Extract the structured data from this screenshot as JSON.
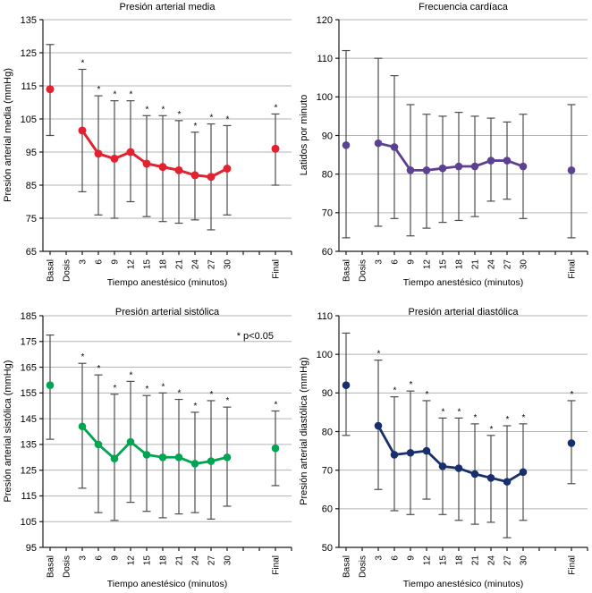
{
  "figure": {
    "background": "#ffffff",
    "style": {
      "grid_color": "#b3b3b3",
      "axis_color": "#1a1a1a",
      "error_bar_color": "#4d4d4d",
      "text_color": "#000000",
      "star_symbol": "*"
    }
  },
  "chart_data": [
    {
      "type": "line",
      "title": "Presión arterial media",
      "ylabel": "Presión arterial media (mmHg)",
      "xlabel": "Tiempo anestésico (minutos)",
      "ylim": [
        65,
        135
      ],
      "ytick_step": 10,
      "grid": true,
      "legend": "none",
      "color": "#e32230",
      "line_width": 3,
      "marker_radius": 4.5,
      "annotation": "",
      "categories": [
        "Basal",
        "Dosis",
        "3",
        "6",
        "9",
        "12",
        "15",
        "18",
        "21",
        "24",
        "27",
        "30",
        "",
        "",
        "Final"
      ],
      "line_from": "3",
      "line_to": "30",
      "points": [
        {
          "t": "Basal",
          "v": 114,
          "lo": 100,
          "hi": 127.5,
          "sig": false
        },
        {
          "t": "3",
          "v": 101.5,
          "lo": 83,
          "hi": 120,
          "sig": true
        },
        {
          "t": "6",
          "v": 94.5,
          "lo": 76,
          "hi": 112,
          "sig": true
        },
        {
          "t": "9",
          "v": 93,
          "lo": 75,
          "hi": 110.5,
          "sig": true
        },
        {
          "t": "12",
          "v": 95,
          "lo": 80,
          "hi": 110.5,
          "sig": true
        },
        {
          "t": "15",
          "v": 91.5,
          "lo": 75.5,
          "hi": 106,
          "sig": true
        },
        {
          "t": "18",
          "v": 90.5,
          "lo": 74,
          "hi": 106,
          "sig": true
        },
        {
          "t": "21",
          "v": 89.5,
          "lo": 73.5,
          "hi": 104.5,
          "sig": true
        },
        {
          "t": "24",
          "v": 88,
          "lo": 74.5,
          "hi": 101,
          "sig": true
        },
        {
          "t": "27",
          "v": 87.5,
          "lo": 71.5,
          "hi": 103.5,
          "sig": true
        },
        {
          "t": "30",
          "v": 90,
          "lo": 76,
          "hi": 103,
          "sig": true
        },
        {
          "t": "Final",
          "v": 96,
          "lo": 85,
          "hi": 106.5,
          "sig": true
        }
      ]
    },
    {
      "type": "line",
      "title": "Frecuencia cardíaca",
      "ylabel": "Latidos por minuto",
      "xlabel": "Tiempo anestésico (minutos)",
      "ylim": [
        60,
        120
      ],
      "ytick_step": 10,
      "grid": true,
      "legend": "none",
      "color": "#5c4092",
      "line_width": 2.8,
      "marker_radius": 4.3,
      "annotation": "",
      "categories": [
        "Basal",
        "Dosis",
        "3",
        "6",
        "9",
        "12",
        "15",
        "18",
        "21",
        "24",
        "27",
        "30",
        "",
        "",
        "Final"
      ],
      "line_from": "3",
      "line_to": "30",
      "points": [
        {
          "t": "Basal",
          "v": 87.5,
          "lo": 63.5,
          "hi": 112,
          "sig": false
        },
        {
          "t": "3",
          "v": 88,
          "lo": 66.5,
          "hi": 110,
          "sig": false
        },
        {
          "t": "6",
          "v": 87,
          "lo": 68.5,
          "hi": 105.5,
          "sig": false
        },
        {
          "t": "9",
          "v": 81,
          "lo": 64,
          "hi": 98,
          "sig": false
        },
        {
          "t": "12",
          "v": 81,
          "lo": 66,
          "hi": 95.5,
          "sig": false
        },
        {
          "t": "15",
          "v": 81.5,
          "lo": 67.5,
          "hi": 95,
          "sig": false
        },
        {
          "t": "18",
          "v": 82,
          "lo": 68,
          "hi": 96,
          "sig": false
        },
        {
          "t": "21",
          "v": 82,
          "lo": 69,
          "hi": 95,
          "sig": false
        },
        {
          "t": "24",
          "v": 83.5,
          "lo": 73,
          "hi": 94.5,
          "sig": false
        },
        {
          "t": "27",
          "v": 83.5,
          "lo": 73.5,
          "hi": 93.5,
          "sig": false
        },
        {
          "t": "30",
          "v": 82,
          "lo": 68.5,
          "hi": 95.5,
          "sig": false
        },
        {
          "t": "Final",
          "v": 81,
          "lo": 63.5,
          "hi": 98,
          "sig": false
        }
      ]
    },
    {
      "type": "line",
      "title": "Presión arterial sistólica",
      "ylabel": "Presión arterial sistólica (mmHg)",
      "xlabel": "Tiempo anestésico (minutos)",
      "ylim": [
        95,
        185
      ],
      "ytick_step": 10,
      "grid": true,
      "legend": "none",
      "color": "#00a551",
      "line_width": 2.8,
      "marker_radius": 4.3,
      "annotation": "* p<0.05",
      "categories": [
        "Basal",
        "Dosis",
        "3",
        "6",
        "9",
        "12",
        "15",
        "18",
        "21",
        "24",
        "27",
        "30",
        "",
        "",
        "Final"
      ],
      "line_from": "3",
      "line_to": "30",
      "points": [
        {
          "t": "Basal",
          "v": 158,
          "lo": 137,
          "hi": 177.5,
          "sig": false
        },
        {
          "t": "3",
          "v": 142,
          "lo": 118,
          "hi": 166.5,
          "sig": true
        },
        {
          "t": "6",
          "v": 135,
          "lo": 108.5,
          "hi": 162,
          "sig": true
        },
        {
          "t": "9",
          "v": 129.5,
          "lo": 105.5,
          "hi": 154.5,
          "sig": true
        },
        {
          "t": "12",
          "v": 136,
          "lo": 112.5,
          "hi": 159.5,
          "sig": true
        },
        {
          "t": "15",
          "v": 131,
          "lo": 109,
          "hi": 154,
          "sig": true
        },
        {
          "t": "18",
          "v": 130,
          "lo": 106.5,
          "hi": 155,
          "sig": true
        },
        {
          "t": "21",
          "v": 130,
          "lo": 108,
          "hi": 152.5,
          "sig": true
        },
        {
          "t": "24",
          "v": 127.5,
          "lo": 108.5,
          "hi": 147.5,
          "sig": true
        },
        {
          "t": "27",
          "v": 128.5,
          "lo": 106,
          "hi": 152,
          "sig": true
        },
        {
          "t": "30",
          "v": 130,
          "lo": 111,
          "hi": 149.5,
          "sig": true
        },
        {
          "t": "Final",
          "v": 133.5,
          "lo": 119,
          "hi": 148,
          "sig": true
        }
      ]
    },
    {
      "type": "line",
      "title": "Presión arterial diastólica",
      "ylabel": "Presión arterial diastólica (mmHg)",
      "xlabel": "Tiempo anestésico (minutos)",
      "ylim": [
        50,
        110
      ],
      "ytick_step": 10,
      "grid": true,
      "legend": "none",
      "color": "#17306d",
      "line_width": 2.8,
      "marker_radius": 4.3,
      "annotation": "",
      "categories": [
        "Basal",
        "Dosis",
        "3",
        "6",
        "9",
        "12",
        "15",
        "18",
        "21",
        "24",
        "27",
        "30",
        "",
        "",
        "Final"
      ],
      "line_from": "3",
      "line_to": "30",
      "points": [
        {
          "t": "Basal",
          "v": 92,
          "lo": 79,
          "hi": 105.5,
          "sig": false
        },
        {
          "t": "3",
          "v": 81.5,
          "lo": 65,
          "hi": 98.5,
          "sig": true
        },
        {
          "t": "6",
          "v": 74,
          "lo": 59.5,
          "hi": 89,
          "sig": true
        },
        {
          "t": "9",
          "v": 74.5,
          "lo": 58.5,
          "hi": 90.5,
          "sig": true
        },
        {
          "t": "12",
          "v": 75,
          "lo": 62.5,
          "hi": 88,
          "sig": true
        },
        {
          "t": "15",
          "v": 71,
          "lo": 58.5,
          "hi": 83.5,
          "sig": true
        },
        {
          "t": "18",
          "v": 70.5,
          "lo": 57,
          "hi": 83.5,
          "sig": true
        },
        {
          "t": "21",
          "v": 69,
          "lo": 56,
          "hi": 82,
          "sig": true
        },
        {
          "t": "24",
          "v": 68,
          "lo": 56.5,
          "hi": 79,
          "sig": true
        },
        {
          "t": "27",
          "v": 67,
          "lo": 52.5,
          "hi": 81.5,
          "sig": true
        },
        {
          "t": "30",
          "v": 69.5,
          "lo": 57,
          "hi": 82,
          "sig": true
        },
        {
          "t": "Final",
          "v": 77,
          "lo": 66.5,
          "hi": 88,
          "sig": true
        }
      ]
    }
  ]
}
